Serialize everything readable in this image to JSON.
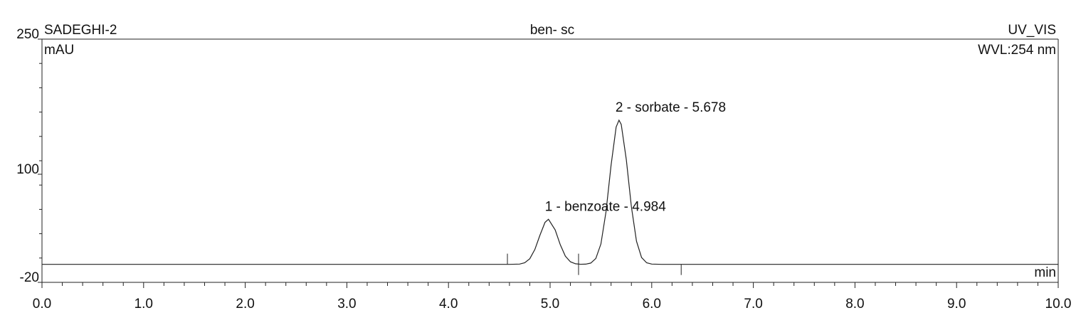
{
  "chart_data": {
    "type": "line",
    "title": "ben- sc",
    "sample": "SADEGHI-2",
    "detector": "UV_VIS",
    "wavelength": "WVL:254 nm",
    "y_label": "mAU",
    "x_label": "min",
    "color": "#222222",
    "x": [
      0,
      1,
      2,
      3,
      4,
      4.5,
      4.6,
      4.7,
      4.75,
      4.8,
      4.85,
      4.9,
      4.95,
      4.984,
      5.05,
      5.1,
      5.15,
      5.2,
      5.25,
      5.3,
      5.35,
      5.4,
      5.45,
      5.5,
      5.55,
      5.6,
      5.65,
      5.678,
      5.7,
      5.75,
      5.8,
      5.85,
      5.9,
      5.95,
      6.0,
      6.1,
      6.2,
      7,
      8,
      9,
      10
    ],
    "values": [
      0,
      0,
      0,
      0,
      0,
      0,
      0,
      0.3,
      1.7,
      6.2,
      16.5,
      32.3,
      46.6,
      50,
      38.2,
      21.8,
      9.1,
      2.8,
      0.6,
      0.1,
      0.2,
      1.4,
      6.5,
      22.6,
      58.2,
      110,
      152.5,
      160,
      155.3,
      116.2,
      63.9,
      25.7,
      7.6,
      1.7,
      0.3,
      0,
      0,
      0,
      0,
      0,
      0
    ],
    "annotations": [
      {
        "text": "1 - benzoate - 4.984",
        "x": 4.984,
        "y": 50
      },
      {
        "text": "2 - sorbate - 5.678",
        "x": 5.678,
        "y": 160
      }
    ],
    "integration_marks": [
      4.58,
      5.28,
      6.29
    ],
    "xlim": [
      0,
      10
    ],
    "ylim": [
      -20,
      250
    ],
    "xticks": [
      {
        "value": 0,
        "label": "0.0"
      },
      {
        "value": 1,
        "label": "1.0"
      },
      {
        "value": 2,
        "label": "2.0"
      },
      {
        "value": 3,
        "label": "3.0"
      },
      {
        "value": 4,
        "label": "4.0"
      },
      {
        "value": 5,
        "label": "5.0"
      },
      {
        "value": 6,
        "label": "6.0"
      },
      {
        "value": 7,
        "label": "7.0"
      },
      {
        "value": 8,
        "label": "8.0"
      },
      {
        "value": 9,
        "label": "9.0"
      },
      {
        "value": 10,
        "label": "10.0"
      }
    ],
    "yticks": [
      -20,
      100,
      250
    ]
  }
}
